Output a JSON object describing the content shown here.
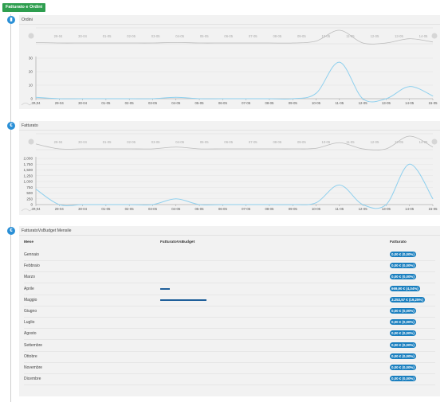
{
  "header": {
    "title": "Fatturato e Ordini"
  },
  "icons": {
    "orders": "bar-chart-icon",
    "revenue": "euro-icon",
    "budget": "euro-icon"
  },
  "orders_panel": {
    "title": "Ordini"
  },
  "revenue_panel": {
    "title": "Fatturato"
  },
  "budget_panel": {
    "title": "FatturatoVsBudget Mensile",
    "columns": {
      "month": "Mese",
      "vs_budget": "FatturatoVsBudget",
      "revenue": "Fatturato"
    },
    "rows": [
      {
        "month": "Gennaio",
        "revenue": "0,00 € (0,00%)",
        "budget_fraction": 0
      },
      {
        "month": "Febbraio",
        "revenue": "0,00 € (0,00%)",
        "budget_fraction": 0
      },
      {
        "month": "Marzo",
        "revenue": "0,00 € (0,00%)",
        "budget_fraction": 0
      },
      {
        "month": "Aprile",
        "revenue": "669,90 € (4,04%)",
        "budget_fraction": 0.0404
      },
      {
        "month": "Maggio",
        "revenue": "3.253,57 € (19,25%)",
        "budget_fraction": 0.1925
      },
      {
        "month": "Giugno",
        "revenue": "0,00 € (0,00%)",
        "budget_fraction": 0
      },
      {
        "month": "Luglio",
        "revenue": "0,00 € (0,00%)",
        "budget_fraction": 0
      },
      {
        "month": "Agosto",
        "revenue": "0,00 € (0,00%)",
        "budget_fraction": 0
      },
      {
        "month": "Settembre",
        "revenue": "0,00 € (0,00%)",
        "budget_fraction": 0
      },
      {
        "month": "Ottobre",
        "revenue": "0,00 € (0,00%)",
        "budget_fraction": 0
      },
      {
        "month": "Novembre",
        "revenue": "0,00 € (0,00%)",
        "budget_fraction": 0
      },
      {
        "month": "Dicembre",
        "revenue": "0,00 € (0,00%)",
        "budget_fraction": 0
      }
    ]
  },
  "colors": {
    "line": "#8fd0ee",
    "navigator": "#bbbbbb",
    "badge": "#1a7fbf",
    "bar": "#1f5f9a",
    "header": "#2e9e4f",
    "icon": "#2a8fd6"
  },
  "chart_data": [
    {
      "type": "line",
      "title": "Ordini",
      "x": [
        "28-04",
        "29-04",
        "30-04",
        "01-05",
        "02-05",
        "03-05",
        "04-05",
        "05-05",
        "06-05",
        "07-05",
        "08-05",
        "09-05",
        "10-05",
        "11-05",
        "12-05",
        "13-05",
        "14-05",
        "15-05"
      ],
      "x_tick_labels": [
        "28-04",
        "29-04",
        "30-04",
        "01-05",
        "02-05",
        "03-05",
        "04-05",
        "05-05",
        "06-05",
        "07-05",
        "08-05",
        "09-05",
        "10-05",
        "11-05",
        "12-05",
        "13-05",
        "14-05",
        "15-05"
      ],
      "navigator_labels": [
        "29-04",
        "30-04",
        "01-05",
        "02-05",
        "03-05",
        "04-05",
        "05-05",
        "06-05",
        "07-05",
        "08-05",
        "09-05",
        "10-05",
        "11-05",
        "12-05",
        "13-05",
        "14-05"
      ],
      "y": [
        1,
        0,
        0,
        0,
        0,
        0,
        1,
        0,
        0,
        0,
        0,
        0,
        4,
        27,
        0,
        0,
        9,
        2
      ],
      "ylim": [
        0,
        30
      ],
      "yticks": [
        0,
        10,
        20,
        30
      ],
      "ytick_labels": [
        "0",
        "10",
        "20",
        "30"
      ],
      "grid": true
    },
    {
      "type": "line",
      "title": "Fatturato",
      "x": [
        "28-04",
        "29-04",
        "30-04",
        "01-05",
        "02-05",
        "03-05",
        "04-05",
        "05-05",
        "06-05",
        "07-05",
        "08-05",
        "09-05",
        "10-05",
        "11-05",
        "12-05",
        "13-05",
        "14-05",
        "15-05"
      ],
      "x_tick_labels": [
        "28-04",
        "29-04",
        "30-04",
        "01-05",
        "02-05",
        "03-05",
        "04-05",
        "05-05",
        "06-05",
        "07-05",
        "08-05",
        "09-05",
        "10-05",
        "11-05",
        "12-05",
        "13-05",
        "14-05",
        "15-05"
      ],
      "navigator_labels": [
        "29-04",
        "30-04",
        "01-05",
        "02-05",
        "03-05",
        "04-05",
        "05-05",
        "06-05",
        "07-05",
        "08-05",
        "09-05",
        "10-05",
        "11-05",
        "12-05",
        "13-05",
        "14-05"
      ],
      "y": [
        670,
        0,
        0,
        0,
        0,
        0,
        250,
        0,
        0,
        0,
        0,
        0,
        80,
        850,
        0,
        0,
        1750,
        250
      ],
      "ylim": [
        0,
        2000
      ],
      "yticks": [
        0,
        250,
        500,
        750,
        1000,
        1250,
        1500,
        1750,
        2000
      ],
      "ytick_labels": [
        "0",
        "250",
        "500",
        "750",
        "1,000",
        "1,250",
        "1,500",
        "1,750",
        "2,000"
      ],
      "grid": true
    }
  ]
}
